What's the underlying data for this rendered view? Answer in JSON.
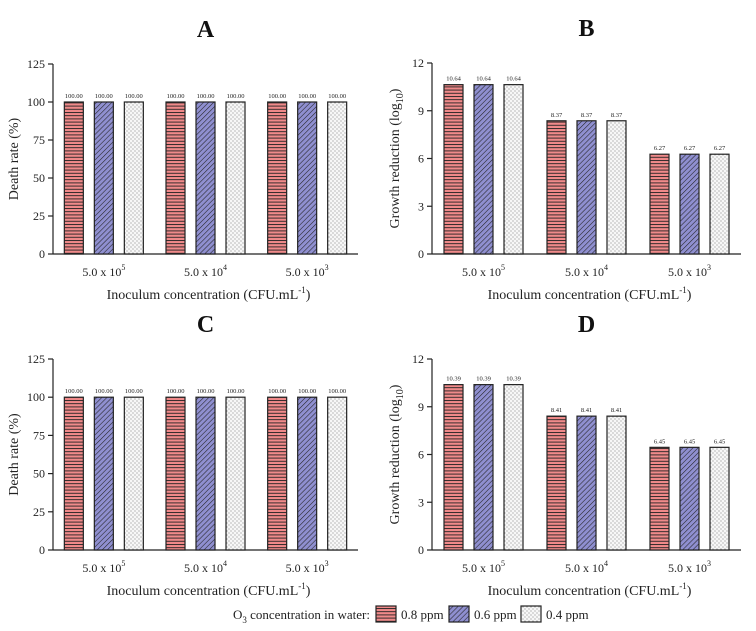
{
  "legend": {
    "title_prefix": "O",
    "title_sub": "3",
    "title_suffix": " concentration in water:",
    "items": [
      "0.8 ppm",
      "0.6 ppm",
      "0.4 ppm"
    ]
  },
  "colors": {
    "0.8 ppm": "#f08a8a",
    "0.6 ppm": "#8f8fd0",
    "0.4 ppm": "#f2f2f2"
  },
  "chart_data": [
    {
      "panel": "A",
      "type": "bar",
      "title": "A",
      "xlabel": "Inoculum concentration (CFU.mL",
      "xlabel_sup": "-1",
      "xlabel_end": ")",
      "ylabel": "Death rate (%)",
      "ylabel_sub": "",
      "ylabel_end": "",
      "ylim": [
        0,
        125
      ],
      "yticks": [
        0,
        25,
        50,
        75,
        100,
        125
      ],
      "categories": [
        {
          "base": "5.0 x 10",
          "exp": "5"
        },
        {
          "base": "5.0 x 10",
          "exp": "4"
        },
        {
          "base": "5.0 x 10",
          "exp": "3"
        }
      ],
      "series": [
        {
          "name": "0.8 ppm",
          "values": [
            100.0,
            100.0,
            100.0
          ],
          "labels": [
            "100.00",
            "100.00",
            "100.00"
          ]
        },
        {
          "name": "0.6 ppm",
          "values": [
            100.0,
            100.0,
            100.0
          ],
          "labels": [
            "100.00",
            "100.00",
            "100.00"
          ]
        },
        {
          "name": "0.4 ppm",
          "values": [
            100.0,
            100.0,
            100.0
          ],
          "labels": [
            "100.00",
            "100.00",
            "100.00"
          ]
        }
      ]
    },
    {
      "panel": "B",
      "type": "bar",
      "title": "B",
      "xlabel": "Inoculum concentration (CFU.mL",
      "xlabel_sup": "-1",
      "xlabel_end": ")",
      "ylabel": "Growth reduction (log",
      "ylabel_sub": "10",
      "ylabel_end": ")",
      "ylim": [
        0,
        12
      ],
      "yticks": [
        0,
        3,
        6,
        9,
        12
      ],
      "categories": [
        {
          "base": "5.0 x 10",
          "exp": "5"
        },
        {
          "base": "5.0 x 10",
          "exp": "4"
        },
        {
          "base": "5.0 x 10",
          "exp": "3"
        }
      ],
      "series": [
        {
          "name": "0.8 ppm",
          "values": [
            10.64,
            8.37,
            6.27
          ],
          "labels": [
            "10.64",
            "8.37",
            "6.27"
          ]
        },
        {
          "name": "0.6 ppm",
          "values": [
            10.64,
            8.37,
            6.27
          ],
          "labels": [
            "10.64",
            "8.37",
            "6.27"
          ]
        },
        {
          "name": "0.4 ppm",
          "values": [
            10.64,
            8.37,
            6.27
          ],
          "labels": [
            "10.64",
            "8.37",
            "6.27"
          ]
        }
      ]
    },
    {
      "panel": "C",
      "type": "bar",
      "title": "C",
      "xlabel": "Inoculum concentration (CFU.mL",
      "xlabel_sup": "-1",
      "xlabel_end": ")",
      "ylabel": "Death rate (%)",
      "ylabel_sub": "",
      "ylabel_end": "",
      "ylim": [
        0,
        125
      ],
      "yticks": [
        0,
        25,
        50,
        75,
        100,
        125
      ],
      "categories": [
        {
          "base": "5.0 x 10",
          "exp": "5"
        },
        {
          "base": "5.0 x 10",
          "exp": "4"
        },
        {
          "base": "5.0 x 10",
          "exp": "3"
        }
      ],
      "series": [
        {
          "name": "0.8 ppm",
          "values": [
            100.0,
            100.0,
            100.0
          ],
          "labels": [
            "100.00",
            "100.00",
            "100.00"
          ]
        },
        {
          "name": "0.6 ppm",
          "values": [
            100.0,
            100.0,
            100.0
          ],
          "labels": [
            "100.00",
            "100.00",
            "100.00"
          ]
        },
        {
          "name": "0.4 ppm",
          "values": [
            100.0,
            100.0,
            100.0
          ],
          "labels": [
            "100.00",
            "100.00",
            "100.00"
          ]
        }
      ]
    },
    {
      "panel": "D",
      "type": "bar",
      "title": "D",
      "xlabel": "Inoculum concentration (CFU.mL",
      "xlabel_sup": "-1",
      "xlabel_end": ")",
      "ylabel": "Growth reduction (log",
      "ylabel_sub": "10",
      "ylabel_end": ")",
      "ylim": [
        0,
        12
      ],
      "yticks": [
        0,
        3,
        6,
        9,
        12
      ],
      "categories": [
        {
          "base": "5.0 x 10",
          "exp": "5"
        },
        {
          "base": "5.0 x 10",
          "exp": "4"
        },
        {
          "base": "5.0 x 10",
          "exp": "3"
        }
      ],
      "series": [
        {
          "name": "0.8 ppm",
          "values": [
            10.39,
            8.41,
            6.45
          ],
          "labels": [
            "10.39",
            "8.41",
            "6.45"
          ]
        },
        {
          "name": "0.6 ppm",
          "values": [
            10.39,
            8.41,
            6.45
          ],
          "labels": [
            "10.39",
            "8.41",
            "6.45"
          ]
        },
        {
          "name": "0.4 ppm",
          "values": [
            10.39,
            8.41,
            6.45
          ],
          "labels": [
            "10.39",
            "8.41",
            "6.45"
          ]
        }
      ]
    }
  ]
}
